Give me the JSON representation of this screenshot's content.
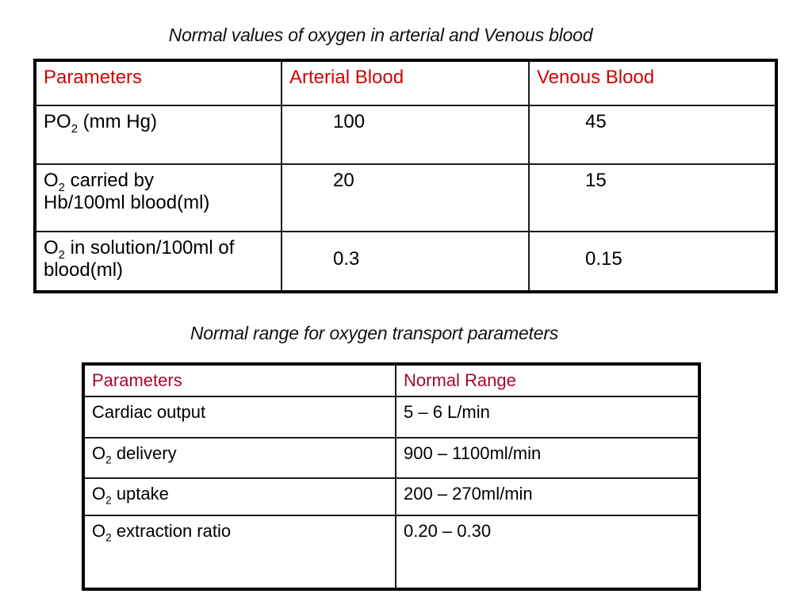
{
  "slide": {
    "background": "#ffffff",
    "text_color": "#000000"
  },
  "table1": {
    "title": "Normal values of oxygen in arterial and Venous blood",
    "header_color": "#cc0505",
    "headers": [
      "Parameters",
      "Arterial Blood",
      "Venous Blood"
    ],
    "rows": [
      {
        "param_pre": "PO",
        "param_sub": "2",
        "param_post": " (mm Hg)",
        "arterial": "100",
        "venous": "45"
      },
      {
        "param_pre": "O",
        "param_sub": "2",
        "param_post": " carried by\nHb/100ml blood(ml)",
        "arterial": "20",
        "venous": "15"
      },
      {
        "param_pre": "O",
        "param_sub": "2",
        "param_post": " in solution/100ml of\nblood(ml)",
        "arterial": "0.3",
        "venous": "0.15"
      }
    ]
  },
  "table2": {
    "title": "Normal range for oxygen transport parameters",
    "header_color": "#a50833",
    "headers": [
      "Parameters",
      "Normal Range"
    ],
    "rows": [
      {
        "param_pre": "Cardiac output",
        "param_sub": "",
        "param_post": "",
        "range": "5 – 6 L/min"
      },
      {
        "param_pre": "O",
        "param_sub": "2",
        "param_post": " delivery",
        "range": "900 – 1100ml/min"
      },
      {
        "param_pre": "O",
        "param_sub": "2",
        "param_post": " uptake",
        "range": "200 – 270ml/min"
      },
      {
        "param_pre": "O",
        "param_sub": "2",
        "param_post": " extraction ratio",
        "range": "0.20 – 0.30"
      }
    ]
  }
}
